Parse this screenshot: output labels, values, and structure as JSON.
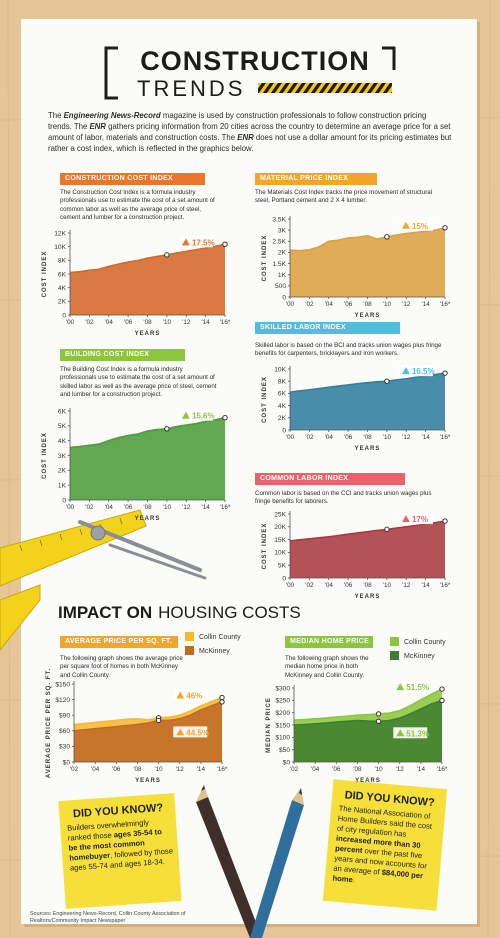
{
  "header": {
    "title": "CONSTRUCTION",
    "subtitle": "TRENDS"
  },
  "intro": [
    "The ",
    "Engineering News-Record",
    " magazine is used by construction professionals to follow construction pricing trends. The ",
    "ENR",
    " gathers pricing information from 20 cities across the country to determine an average price for a set amount of labor, materials and construction costs. The ",
    "ENR",
    " does not use a dollar amount for its pricing estimates but rather a cost index, which is reflected in the graphics below."
  ],
  "section_title": [
    "IMPACT ON",
    "HOUSING COSTS"
  ],
  "did_you_know": [
    {
      "title": "DID YOU KNOW?",
      "text": [
        "Builders overwhelmingly ranked those ",
        "ages 35-54 to be the most common homebuyer",
        ", followed by those ages 55-74 and ages 18-34."
      ]
    },
    {
      "title": "DID YOU KNOW?",
      "text": [
        "The National Association of Home Builders said the cost of city regulation has ",
        "increased more than 30 percent",
        " over the past five years and now accounts for an average of ",
        "$84,000 per home",
        "."
      ]
    }
  ],
  "sources": "Sources: Engineering News-Record, Collin County Association of Realtors/Community Impact Newspaper",
  "chart_data": [
    {
      "type": "area",
      "title": "CONSTRUCTION COST INDEX",
      "accent": "#e8762c",
      "color": "#d4682a",
      "description": "The Construction Cost Index is a formula industry professionals use to estimate the cost of a set amount of common labor as well as the average price of steel, cement and lumber for a construction project.",
      "xlabel": "YEARS",
      "ylabel": "COST INDEX",
      "x": [
        2000,
        2001,
        2002,
        2003,
        2004,
        2005,
        2006,
        2007,
        2008,
        2009,
        2010,
        2011,
        2012,
        2013,
        2014,
        2015,
        2016
      ],
      "values": [
        6221,
        6343,
        6538,
        6694,
        7115,
        7446,
        7751,
        7967,
        8310,
        8570,
        8802,
        9070,
        9308,
        9547,
        9806,
        10035,
        10340
      ],
      "compare_x": [
        2010,
        2016
      ],
      "change_label": "17.5%",
      "xlim": [
        2000,
        2016
      ],
      "ylim": [
        0,
        12000
      ],
      "xticks": [
        {
          "value": 2000,
          "label": "'00"
        },
        {
          "value": 2002,
          "label": "'02"
        },
        {
          "value": 2004,
          "label": "'04"
        },
        {
          "value": 2006,
          "label": "'06"
        },
        {
          "value": 2008,
          "label": "'08"
        },
        {
          "value": 2010,
          "label": "'10"
        },
        {
          "value": 2012,
          "label": "'12"
        },
        {
          "value": 2014,
          "label": "'14"
        },
        {
          "value": 2016,
          "label": "'16*"
        }
      ],
      "yticks": [
        0,
        {
          "value": 2000,
          "label": "2K"
        },
        {
          "value": 4000,
          "label": "4K"
        },
        {
          "value": 6000,
          "label": "6K"
        },
        {
          "value": 8000,
          "label": "8K"
        },
        {
          "value": 10000,
          "label": "10K"
        },
        {
          "value": 12000,
          "label": "12K"
        }
      ]
    },
    {
      "type": "area",
      "title": "MATERIAL PRICE INDEX",
      "accent": "#f0a62c",
      "color": "#dca040",
      "description": "The Materials Cost Index tracks the price movement of structural steel, Portland cement and 2 X 4 lumber.",
      "xlabel": "YEARS",
      "ylabel": "COST INDEX",
      "x": [
        2000,
        2001,
        2002,
        2003,
        2004,
        2005,
        2006,
        2007,
        2008,
        2009,
        2010,
        2011,
        2012,
        2013,
        2014,
        2015,
        2016
      ],
      "values": [
        2100,
        2080,
        2120,
        2250,
        2500,
        2550,
        2650,
        2680,
        2750,
        2600,
        2700,
        2780,
        2850,
        2900,
        2950,
        3000,
        3105
      ],
      "compare_x": [
        2010,
        2016
      ],
      "change_label": "15%",
      "xlim": [
        2000,
        2016
      ],
      "ylim": [
        0,
        3500
      ],
      "xticks": [
        {
          "value": 2000,
          "label": "'00"
        },
        {
          "value": 2002,
          "label": "'02"
        },
        {
          "value": 2004,
          "label": "'04"
        },
        {
          "value": 2006,
          "label": "'06"
        },
        {
          "value": 2008,
          "label": "'08"
        },
        {
          "value": 2010,
          "label": "'10"
        },
        {
          "value": 2012,
          "label": "'12"
        },
        {
          "value": 2014,
          "label": "'14"
        },
        {
          "value": 2016,
          "label": "'16*"
        }
      ],
      "yticks": [
        0,
        500,
        {
          "value": 1000,
          "label": "1K"
        },
        {
          "value": 1500,
          "label": "1.5K"
        },
        {
          "value": 2000,
          "label": "2K"
        },
        {
          "value": 2500,
          "label": "2.5K"
        },
        {
          "value": 3000,
          "label": "3K"
        },
        {
          "value": 3500,
          "label": "3.5K"
        }
      ]
    },
    {
      "type": "area",
      "title": "SKILLED LABOR INDEX",
      "accent": "#4fbfe0",
      "color": "#2f7e9e",
      "description": "Skilled labor is based on the BCI and tracks union wages plus fringe benefits for carpenters, bricklayers and iron workers.",
      "xlabel": "YEARS",
      "ylabel": "COST INDEX",
      "x": [
        2000,
        2001,
        2002,
        2003,
        2004,
        2005,
        2006,
        2007,
        2008,
        2009,
        2010,
        2011,
        2012,
        2013,
        2014,
        2015,
        2016
      ],
      "values": [
        6200,
        6400,
        6600,
        6800,
        7000,
        7200,
        7400,
        7600,
        7750,
        7900,
        8000,
        8200,
        8400,
        8650,
        8850,
        9100,
        9320
      ],
      "compare_x": [
        2010,
        2016
      ],
      "change_label": "16.5%",
      "xlim": [
        2000,
        2016
      ],
      "ylim": [
        0,
        10000
      ],
      "xticks": [
        {
          "value": 2000,
          "label": "'00"
        },
        {
          "value": 2002,
          "label": "'02"
        },
        {
          "value": 2004,
          "label": "'04"
        },
        {
          "value": 2006,
          "label": "'06"
        },
        {
          "value": 2008,
          "label": "'08"
        },
        {
          "value": 2010,
          "label": "'10"
        },
        {
          "value": 2012,
          "label": "'12"
        },
        {
          "value": 2014,
          "label": "'14"
        },
        {
          "value": 2016,
          "label": "'16*"
        }
      ],
      "yticks": [
        0,
        {
          "value": 2000,
          "label": "2K"
        },
        {
          "value": 4000,
          "label": "4K"
        },
        {
          "value": 6000,
          "label": "6K"
        },
        {
          "value": 8000,
          "label": "8K"
        },
        {
          "value": 10000,
          "label": "10K"
        }
      ]
    },
    {
      "type": "area",
      "title": "BUILDING COST INDEX",
      "accent": "#8cc63f",
      "color": "#4c9c3a",
      "description": "The Building Cost Index is a formula industry professionals use to estimate the cost of a set amount of skilled labor as well as the average price of steel, cement and lumber for a construction project.",
      "xlabel": "YEARS",
      "ylabel": "COST INDEX",
      "x": [
        2000,
        2001,
        2002,
        2003,
        2004,
        2005,
        2006,
        2007,
        2008,
        2009,
        2010,
        2011,
        2012,
        2013,
        2014,
        2015,
        2016
      ],
      "values": [
        3540,
        3600,
        3690,
        3770,
        4000,
        4200,
        4350,
        4450,
        4650,
        4750,
        4800,
        4950,
        5050,
        5150,
        5300,
        5400,
        5549
      ],
      "compare_x": [
        2010,
        2016
      ],
      "change_label": "15.6%",
      "xlim": [
        2000,
        2016
      ],
      "ylim": [
        0,
        6000
      ],
      "xticks": [
        {
          "value": 2000,
          "label": "'00"
        },
        {
          "value": 2002,
          "label": "'02"
        },
        {
          "value": 2004,
          "label": "'04"
        },
        {
          "value": 2006,
          "label": "'06"
        },
        {
          "value": 2008,
          "label": "'08"
        },
        {
          "value": 2010,
          "label": "'10"
        },
        {
          "value": 2012,
          "label": "'12"
        },
        {
          "value": 2014,
          "label": "'14"
        },
        {
          "value": 2016,
          "label": "'16*"
        }
      ],
      "yticks": [
        0,
        {
          "value": 1000,
          "label": "1K"
        },
        {
          "value": 2000,
          "label": "2K"
        },
        {
          "value": 3000,
          "label": "3K"
        },
        {
          "value": 4000,
          "label": "4K"
        },
        {
          "value": 5000,
          "label": "5K"
        },
        {
          "value": 6000,
          "label": "6K"
        }
      ]
    },
    {
      "type": "area",
      "title": "COMMON LABOR INDEX",
      "accent": "#e8636b",
      "color": "#a93a40",
      "description": "Common labor is based on the CCI and tracks union wages plus fringe benefits for laborers.",
      "xlabel": "YEARS",
      "ylabel": "COST INDEX",
      "x": [
        2000,
        2001,
        2002,
        2003,
        2004,
        2005,
        2006,
        2007,
        2008,
        2009,
        2010,
        2011,
        2012,
        2013,
        2014,
        2015,
        2016
      ],
      "values": [
        14500,
        14900,
        15300,
        15700,
        16100,
        16600,
        17100,
        17600,
        18100,
        18600,
        19000,
        19500,
        20000,
        20500,
        21100,
        21600,
        22230
      ],
      "compare_x": [
        2010,
        2016
      ],
      "change_label": "17%",
      "xlim": [
        2000,
        2016
      ],
      "ylim": [
        0,
        25000
      ],
      "xticks": [
        {
          "value": 2000,
          "label": "'00"
        },
        {
          "value": 2002,
          "label": "'02"
        },
        {
          "value": 2004,
          "label": "'04"
        },
        {
          "value": 2006,
          "label": "'06"
        },
        {
          "value": 2008,
          "label": "'08"
        },
        {
          "value": 2010,
          "label": "'10"
        },
        {
          "value": 2012,
          "label": "'12"
        },
        {
          "value": 2014,
          "label": "'14"
        },
        {
          "value": 2016,
          "label": "'16*"
        }
      ],
      "yticks": [
        0,
        {
          "value": 5000,
          "label": "5K"
        },
        {
          "value": 10000,
          "label": "10K"
        },
        {
          "value": 15000,
          "label": "15K"
        },
        {
          "value": 20000,
          "label": "20K"
        },
        {
          "value": 25000,
          "label": "25K"
        }
      ]
    },
    {
      "type": "area",
      "title": "AVERAGE PRICE PER SQ. FT.",
      "accent": "#f0a62c",
      "description": "The following graph shows the average price per square foot of homes in both McKinney and Collin County.",
      "xlabel": "YEARS",
      "ylabel": "AVERAGE PRICE PER SQ. FT.",
      "x": [
        2002,
        2003,
        2004,
        2005,
        2006,
        2007,
        2008,
        2009,
        2010,
        2011,
        2012,
        2013,
        2014,
        2015,
        2016
      ],
      "series": [
        {
          "name": "Collin County",
          "color": "#f5b932",
          "values": [
            72,
            74,
            76,
            78,
            80,
            82,
            83,
            81,
            85,
            86,
            90,
            98,
            108,
            116,
            124
          ],
          "change_label": "46%"
        },
        {
          "name": "McKinney",
          "color": "#c06a25",
          "values": [
            60,
            62,
            64,
            66,
            68,
            70,
            72,
            75,
            80,
            80,
            83,
            90,
            100,
            108,
            115.6
          ],
          "change_label": "44.5%"
        }
      ],
      "compare_x": [
        2010,
        2016
      ],
      "xlim": [
        2002,
        2016
      ],
      "ylim": [
        0,
        150
      ],
      "xticks": [
        {
          "value": 2002,
          "label": "'02"
        },
        {
          "value": 2004,
          "label": "'04"
        },
        {
          "value": 2006,
          "label": "'06"
        },
        {
          "value": 2008,
          "label": "'08"
        },
        {
          "value": 2010,
          "label": "'10"
        },
        {
          "value": 2012,
          "label": "'12"
        },
        {
          "value": 2014,
          "label": "'14"
        },
        {
          "value": 2016,
          "label": "'16*"
        }
      ],
      "yticks": [
        {
          "value": 0,
          "label": "$0"
        },
        {
          "value": 30,
          "label": "$30"
        },
        {
          "value": 60,
          "label": "$60"
        },
        {
          "value": 90,
          "label": "$90"
        },
        {
          "value": 120,
          "label": "$120"
        },
        {
          "value": 150,
          "label": "$150"
        }
      ]
    },
    {
      "type": "area",
      "title": "MEDIAN HOME PRICE",
      "accent": "#8cc63f",
      "description": "The following graph shows the median home price in both McKinney and Collin County.",
      "xlabel": "YEARS",
      "ylabel": "MEDIAN PRICE",
      "x": [
        2002,
        2003,
        2004,
        2005,
        2006,
        2007,
        2008,
        2009,
        2010,
        2011,
        2012,
        2013,
        2014,
        2015,
        2016
      ],
      "series": [
        {
          "name": "Collin County",
          "color": "#8cc63f",
          "values": [
            170,
            172,
            175,
            178,
            182,
            186,
            190,
            192,
            195,
            198,
            208,
            228,
            252,
            275,
            295.4
          ],
          "change_label": "51.5%"
        },
        {
          "name": "McKinney",
          "color": "#3f7e2e",
          "values": [
            150,
            152,
            155,
            158,
            162,
            165,
            168,
            166,
            165,
            168,
            178,
            195,
            215,
            235,
            249.6
          ],
          "change_label": "51.3%"
        }
      ],
      "compare_x": [
        2010,
        2016
      ],
      "xlim": [
        2002,
        2016
      ],
      "ylim": [
        0,
        300
      ],
      "xticks": [
        {
          "value": 2002,
          "label": "'02"
        },
        {
          "value": 2004,
          "label": "'04"
        },
        {
          "value": 2006,
          "label": "'06"
        },
        {
          "value": 2008,
          "label": "'08"
        },
        {
          "value": 2010,
          "label": "'10"
        },
        {
          "value": 2012,
          "label": "'12"
        },
        {
          "value": 2014,
          "label": "'14"
        },
        {
          "value": 2016,
          "label": "'16*"
        }
      ],
      "yticks": [
        {
          "value": 0,
          "label": "$0"
        },
        {
          "value": 50,
          "label": "$50"
        },
        {
          "value": 100,
          "label": "$100"
        },
        {
          "value": 150,
          "label": "$150"
        },
        {
          "value": 200,
          "label": "$200"
        },
        {
          "value": 250,
          "label": "$250"
        },
        {
          "value": 300,
          "label": "$300"
        }
      ]
    }
  ]
}
